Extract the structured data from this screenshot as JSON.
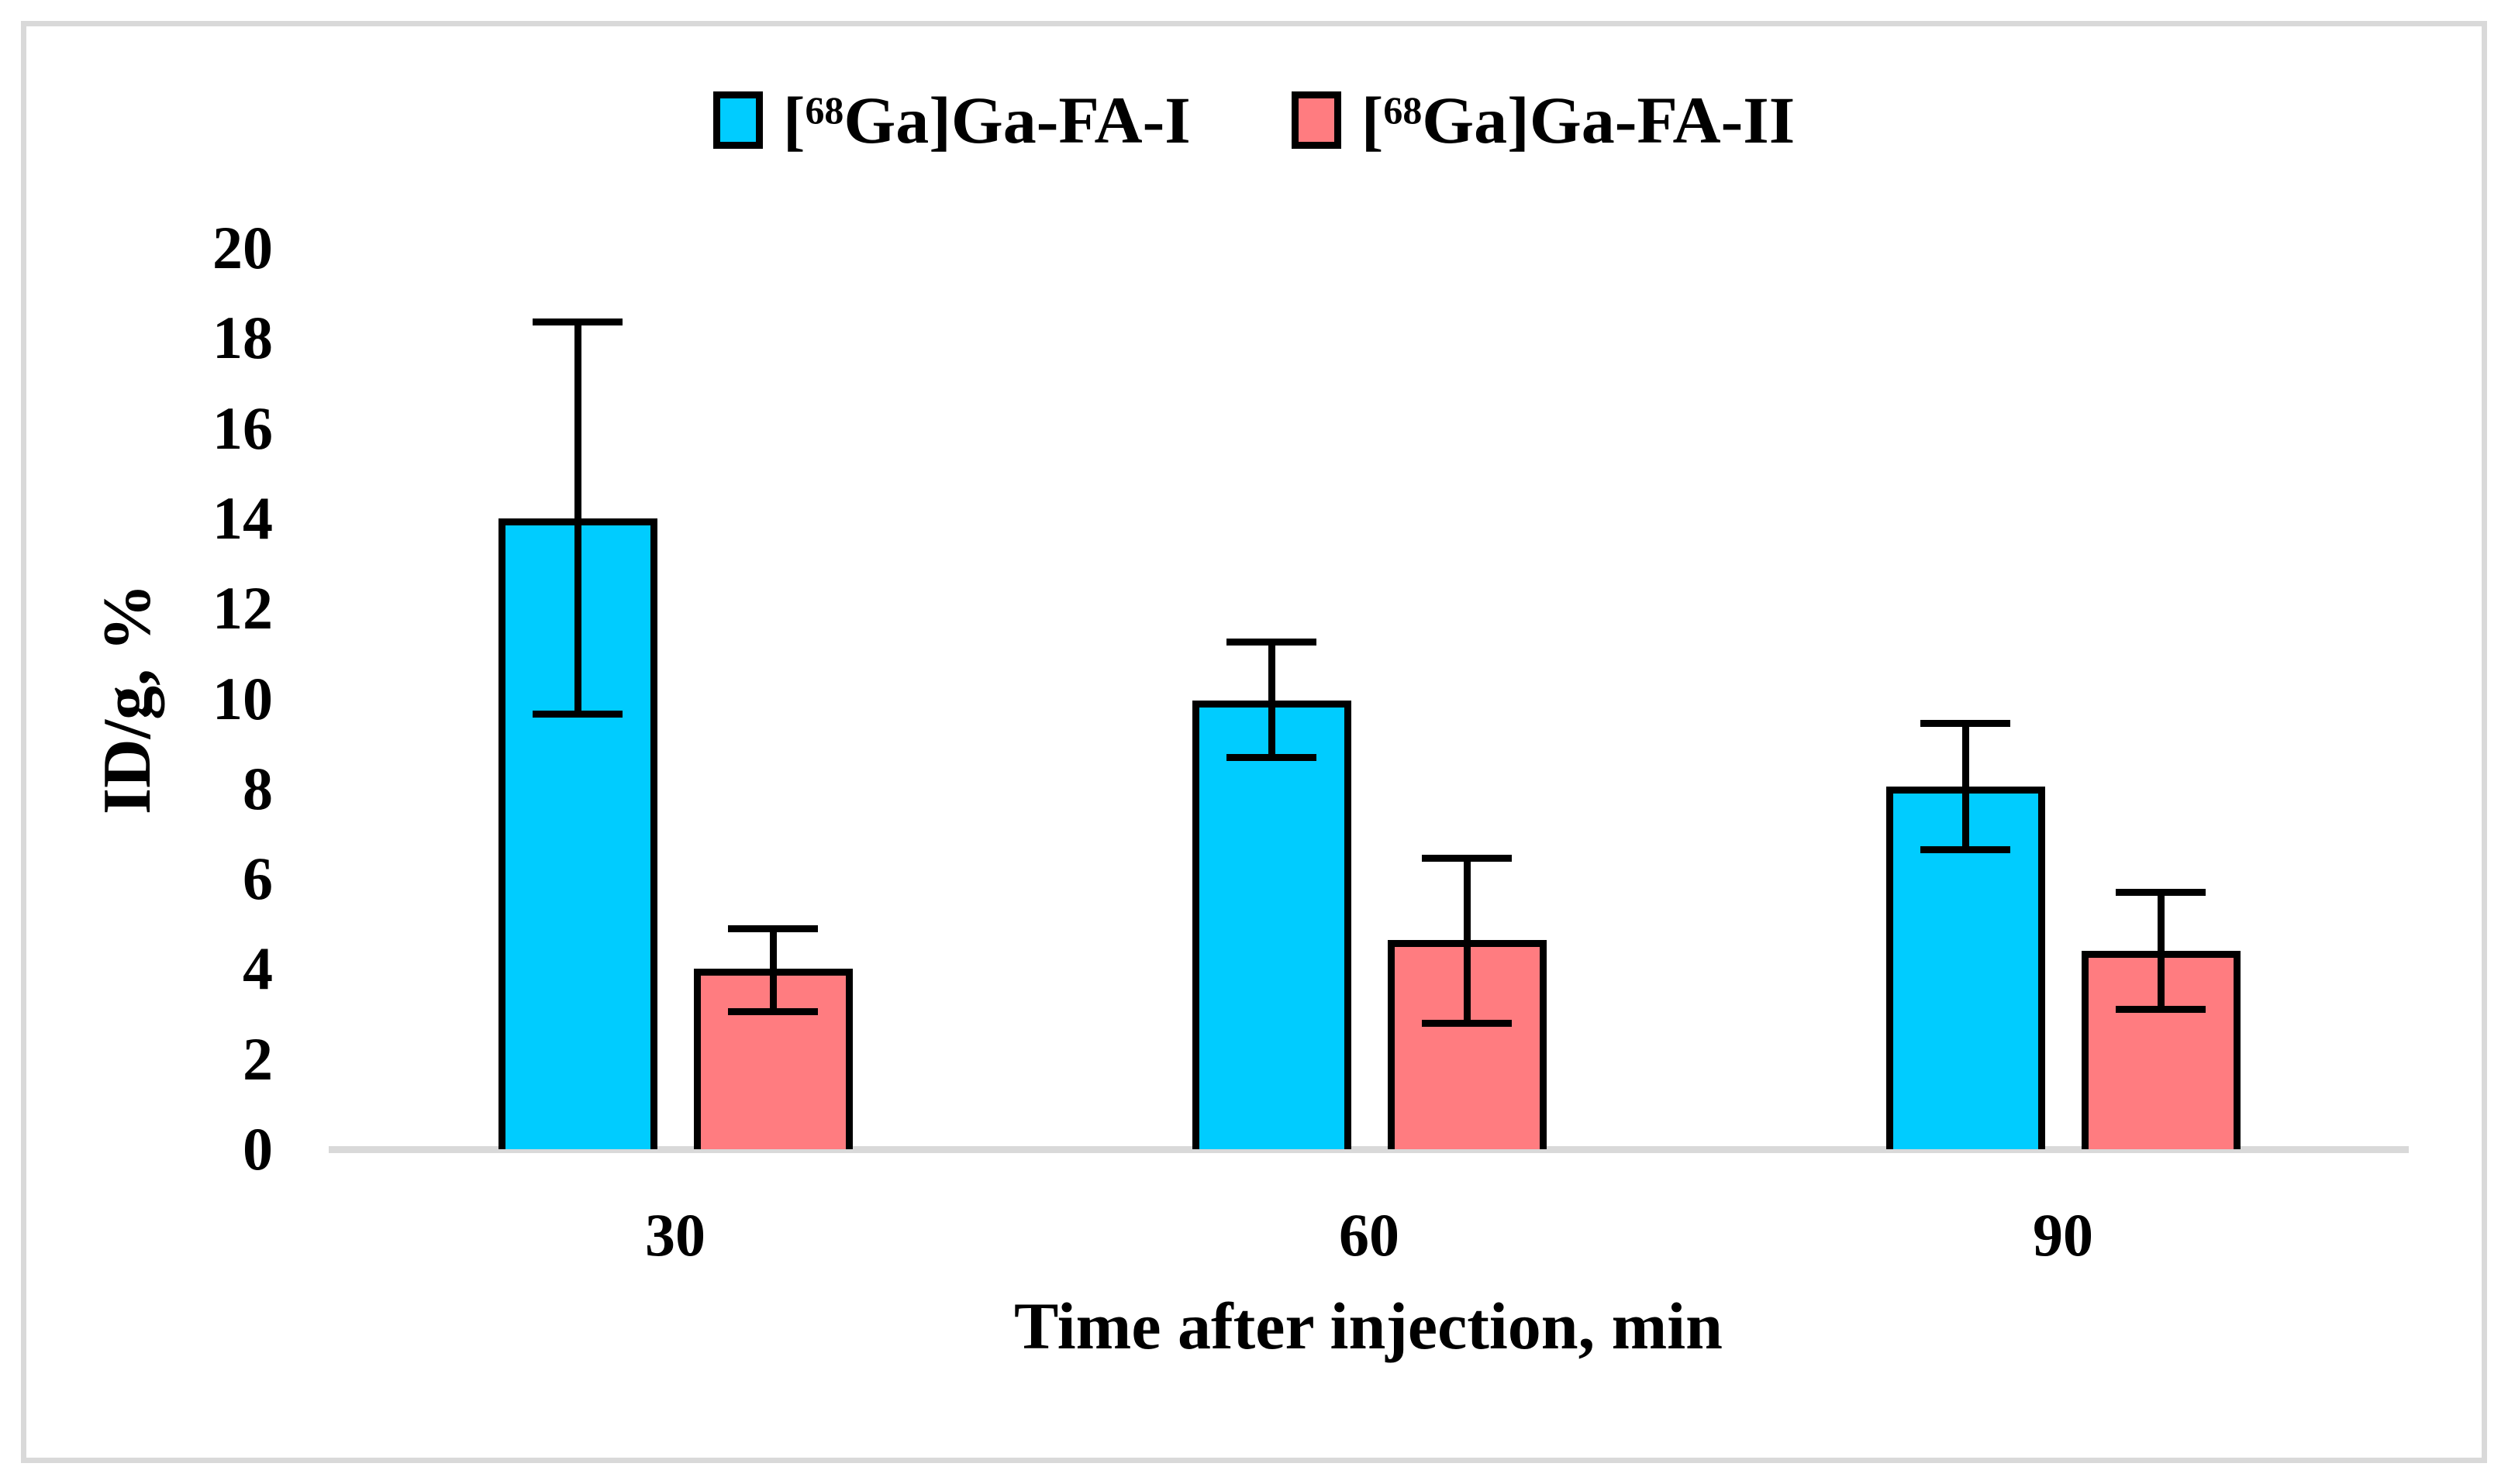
{
  "legend": {
    "items": [
      {
        "bracket_open": "[",
        "isotope": "68",
        "rest": "Ga]Ga-FA-I",
        "color": "#00ccff"
      },
      {
        "bracket_open": "[",
        "isotope": "68",
        "rest": "Ga]Ga-FA-II",
        "color": "#ff7c80"
      }
    ]
  },
  "axes": {
    "y_ticks": [
      "0",
      "2",
      "4",
      "6",
      "8",
      "10",
      "12",
      "14",
      "16",
      "18",
      "20"
    ],
    "x_ticks": [
      "30",
      "60",
      "90"
    ],
    "axis_line_color": "#d9d9d9"
  },
  "frame": {
    "border_color": "#d9d9d9"
  },
  "chart_data": {
    "type": "bar",
    "categories": [
      "30",
      "60",
      "90"
    ],
    "series": [
      {
        "name": "[68Ga]Ga-FA-I",
        "color": "#00ccff",
        "values": [
          14.0,
          9.95,
          8.05
        ],
        "error_low": [
          9.65,
          8.7,
          6.65
        ],
        "error_high": [
          18.35,
          11.25,
          9.45
        ]
      },
      {
        "name": "[68Ga]Ga-FA-II",
        "color": "#ff7c80",
        "values": [
          4.0,
          4.65,
          4.4
        ],
        "error_low": [
          3.05,
          2.8,
          3.1
        ],
        "error_high": [
          4.9,
          6.45,
          5.7
        ]
      }
    ],
    "title": "",
    "xlabel": "Time after injection, min",
    "ylabel": "ID/g, %",
    "ylim": [
      0,
      20
    ],
    "ytick_step": 2,
    "grid": false,
    "legend_position": "top",
    "error_bars": true
  }
}
